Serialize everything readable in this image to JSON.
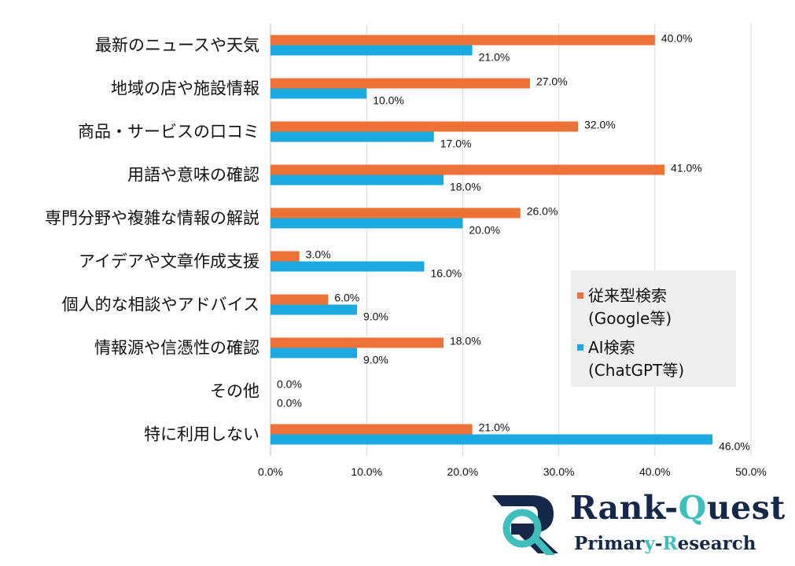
{
  "chart_data": {
    "type": "bar",
    "orientation": "horizontal",
    "categories": [
      "最新のニュースや天気",
      "地域の店や施設情報",
      "商品・サービスの口コミ",
      "用語や意味の確認",
      "専門分野や複雑な情報の解説",
      "アイデアや文章作成支援",
      "個人的な相談やアドバイス",
      "情報源や信憑性の確認",
      "その他",
      "特に利用しない"
    ],
    "series": [
      {
        "name": "従来型検索(Google等)",
        "color": "#ec7237",
        "values": [
          40.0,
          27.0,
          32.0,
          41.0,
          26.0,
          3.0,
          6.0,
          18.0,
          0.0,
          21.0
        ]
      },
      {
        "name": "AI検索(ChatGPT等)",
        "color": "#1ba9e1",
        "values": [
          21.0,
          10.0,
          17.0,
          18.0,
          20.0,
          16.0,
          9.0,
          9.0,
          0.0,
          46.0
        ]
      }
    ],
    "xlim": [
      0,
      50
    ],
    "ticks": [
      "0.0%",
      "10.0%",
      "20.0%",
      "30.0%",
      "40.0%",
      "50.0%"
    ],
    "grid": "vertical",
    "legend_position": "right",
    "value_format": "percent-1dp"
  },
  "legend": {
    "series1_line1": "従来型検索",
    "series1_line2": "(Google等)",
    "series2_line1": "AI検索",
    "series2_line2": "(ChatGPT等)"
  },
  "logo": {
    "title_a": "Rank-",
    "title_b": "Q",
    "title_c": "uest",
    "sub_a": "Primar",
    "sub_b": "y",
    "sub_c": "-",
    "sub_d": "R",
    "sub_e": "esearch",
    "icon": "rq-logo-icon",
    "navy": "#16284a",
    "teal": "#3ebfbd"
  }
}
